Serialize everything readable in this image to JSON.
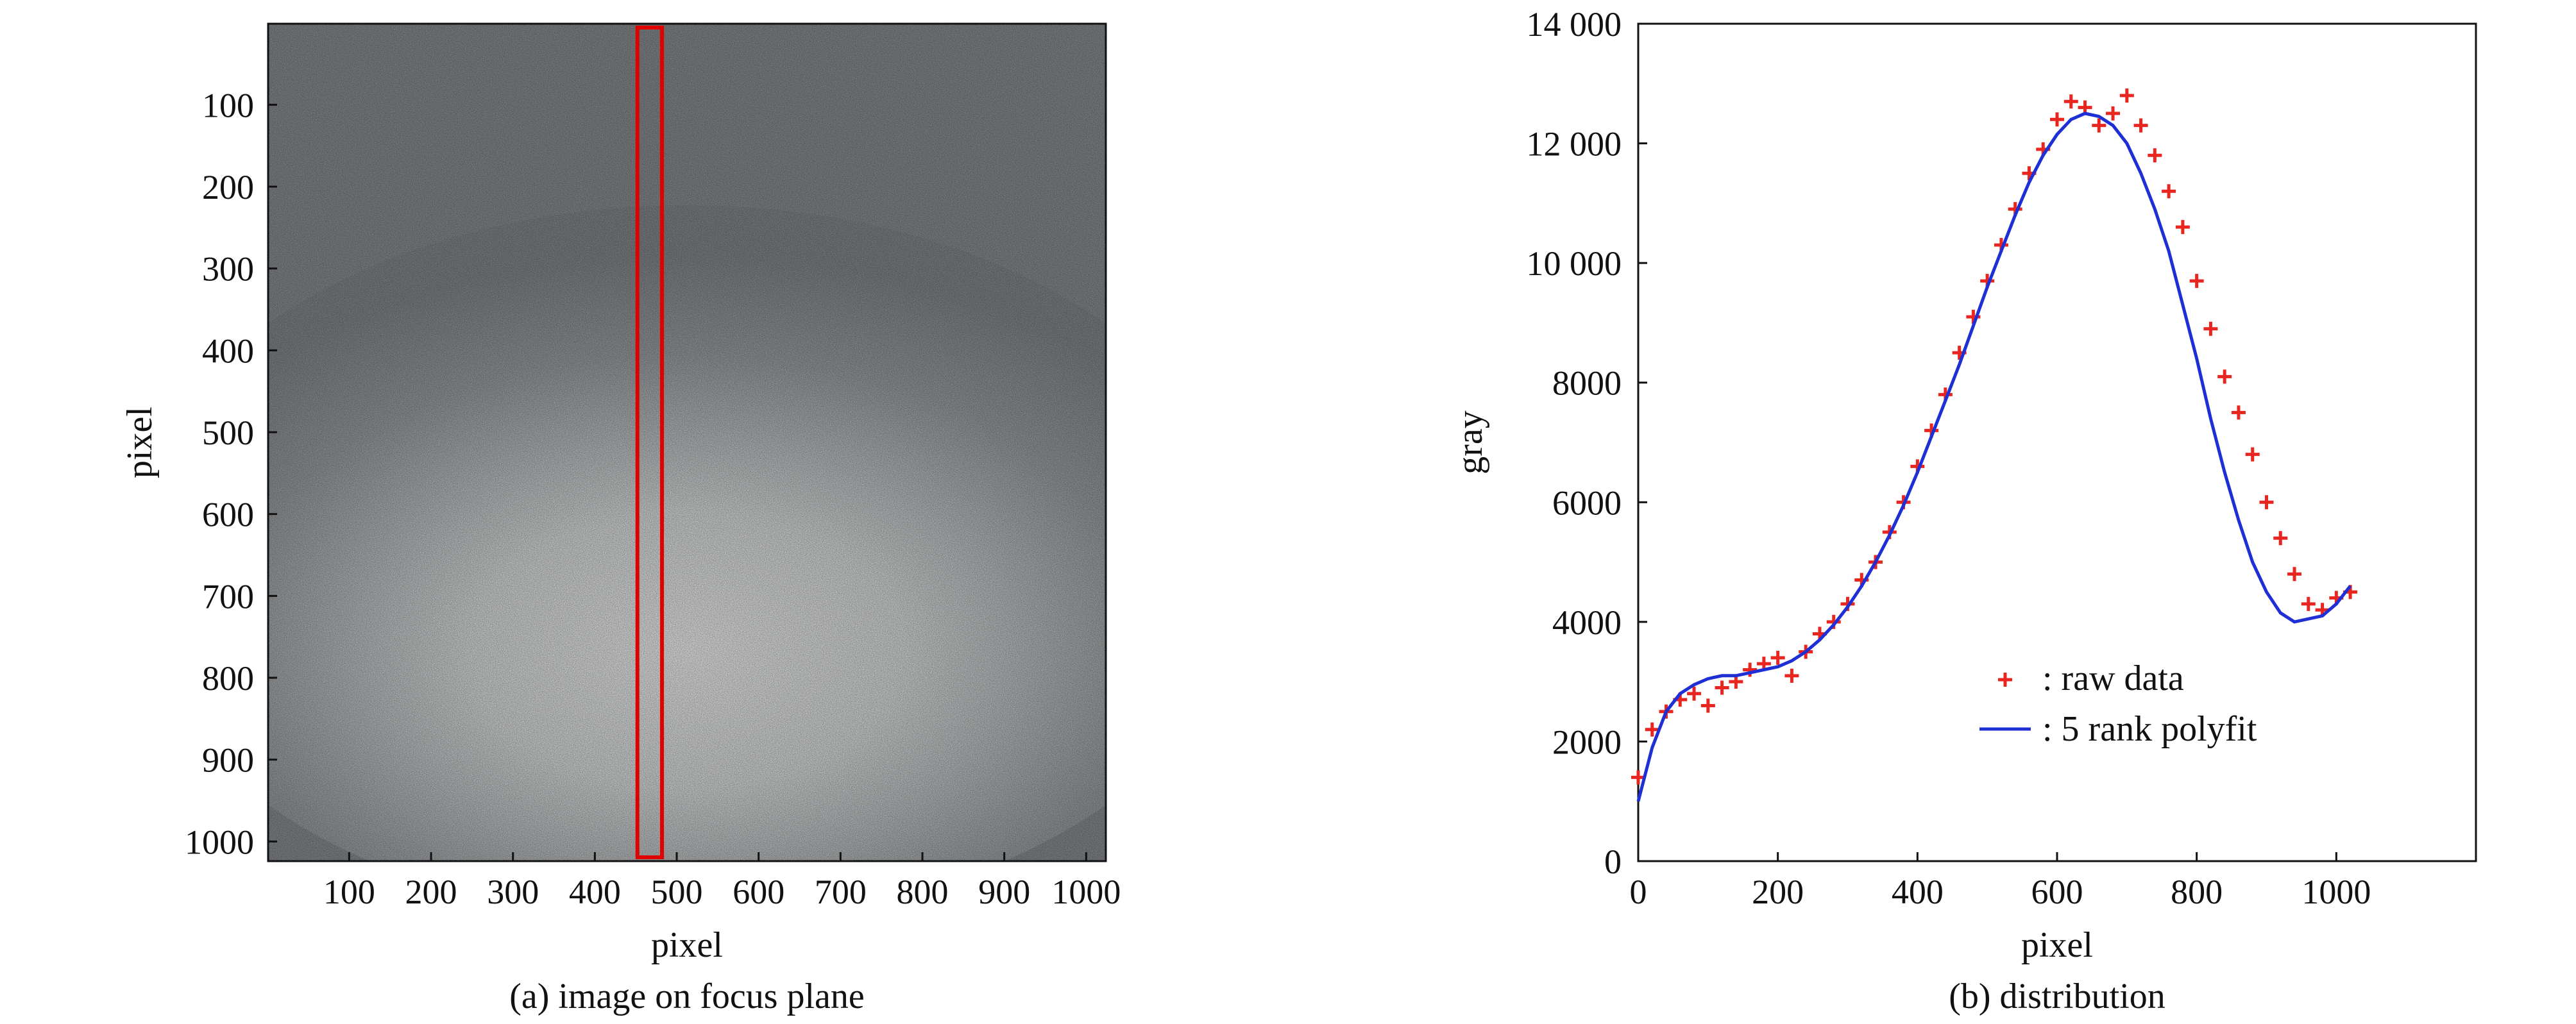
{
  "chart_data": [
    {
      "panel": "a",
      "type": "heatmap",
      "caption": "(a) image on focus plane",
      "xlabel": "pixel",
      "ylabel": "pixel",
      "xlim": [
        1,
        1024
      ],
      "ylim": [
        1,
        1024
      ],
      "xticks": [
        100,
        200,
        300,
        400,
        500,
        600,
        700,
        800,
        900,
        1000
      ],
      "yticks": [
        100,
        200,
        300,
        400,
        500,
        600,
        700,
        800,
        900,
        1000
      ],
      "y_direction": "top-to-bottom",
      "colormap": "grayscale",
      "bright_region": {
        "center_x": 512,
        "center_y": 660
      },
      "highlight_box": {
        "x_range": [
          452,
          482
        ],
        "y_range": [
          1,
          1024
        ],
        "color": "#e00000"
      }
    },
    {
      "panel": "b",
      "type": "scatter",
      "caption": "(b) distribution",
      "xlabel": "pixel",
      "ylabel": "gray",
      "xlim": [
        0,
        1200
      ],
      "ylim": [
        0,
        14000
      ],
      "xticks": [
        "0",
        "200",
        "400",
        "600",
        "800",
        "1000"
      ],
      "yticks": [
        "0",
        "2000",
        "4000",
        "6000",
        "8000",
        "10 000",
        "12 000",
        "14 000"
      ],
      "grid": false,
      "legend_position": "lower-right",
      "series": [
        {
          "name": ": raw data",
          "marker": "plus",
          "color": "#e8251f",
          "x": [
            0,
            20,
            40,
            60,
            80,
            100,
            120,
            140,
            160,
            180,
            200,
            220,
            240,
            260,
            280,
            300,
            320,
            340,
            360,
            380,
            400,
            420,
            440,
            460,
            480,
            500,
            520,
            540,
            560,
            580,
            600,
            620,
            640,
            660,
            680,
            700,
            720,
            740,
            760,
            780,
            800,
            820,
            840,
            860,
            880,
            900,
            920,
            940,
            960,
            980,
            1000,
            1020
          ],
          "y": [
            1400,
            2200,
            2500,
            2700,
            2800,
            2600,
            2900,
            3000,
            3200,
            3300,
            3400,
            3100,
            3500,
            3800,
            4000,
            4300,
            4700,
            5000,
            5500,
            6000,
            6600,
            7200,
            7800,
            8500,
            9100,
            9700,
            10300,
            10900,
            11500,
            11900,
            12400,
            12700,
            12600,
            12300,
            12500,
            12800,
            12300,
            11800,
            11200,
            10600,
            9700,
            8900,
            8100,
            7500,
            6800,
            6000,
            5400,
            4800,
            4300,
            4200,
            4400,
            4500
          ]
        },
        {
          "name": ": 5 rank polyfit",
          "marker": "line",
          "color": "#1f2fd6",
          "x": [
            0,
            20,
            40,
            60,
            80,
            100,
            120,
            140,
            160,
            180,
            200,
            220,
            240,
            260,
            280,
            300,
            320,
            340,
            360,
            380,
            400,
            420,
            440,
            460,
            480,
            500,
            520,
            540,
            560,
            580,
            600,
            620,
            640,
            660,
            680,
            700,
            720,
            740,
            760,
            780,
            800,
            820,
            840,
            860,
            880,
            900,
            920,
            940,
            960,
            980,
            1000,
            1020
          ],
          "y": [
            1000,
            1900,
            2500,
            2800,
            2950,
            3050,
            3100,
            3100,
            3150,
            3200,
            3250,
            3350,
            3500,
            3700,
            3950,
            4250,
            4600,
            5000,
            5450,
            5950,
            6500,
            7100,
            7700,
            8300,
            8950,
            9600,
            10200,
            10800,
            11350,
            11800,
            12150,
            12400,
            12500,
            12450,
            12300,
            12000,
            11500,
            10900,
            10200,
            9300,
            8400,
            7400,
            6500,
            5700,
            5000,
            4500,
            4150,
            4000,
            4050,
            4100,
            4300,
            4600
          ]
        }
      ]
    }
  ]
}
